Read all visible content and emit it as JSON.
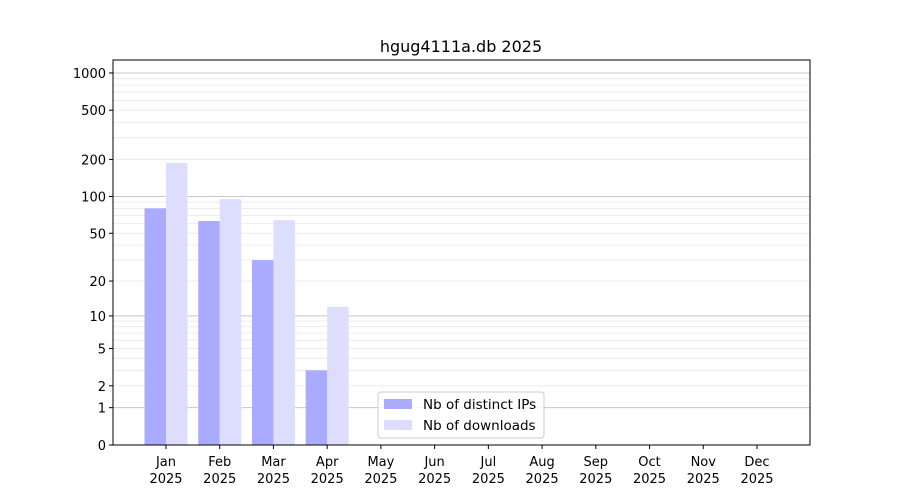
{
  "chart_data": {
    "type": "bar",
    "title": "hgug4111a.db 2025",
    "xlabel": "",
    "ylabel": "",
    "yscale": "symlog (log of 1+y)",
    "ylim": [
      0,
      1300
    ],
    "yticks": [
      0,
      1,
      2,
      5,
      10,
      20,
      50,
      100,
      200,
      500,
      1000
    ],
    "grid": true,
    "legend_position": "bottom-center",
    "categories": [
      [
        "Jan",
        "2025"
      ],
      [
        "Feb",
        "2025"
      ],
      [
        "Mar",
        "2025"
      ],
      [
        "Apr",
        "2025"
      ],
      [
        "May",
        "2025"
      ],
      [
        "Jun",
        "2025"
      ],
      [
        "Jul",
        "2025"
      ],
      [
        "Aug",
        "2025"
      ],
      [
        "Sep",
        "2025"
      ],
      [
        "Oct",
        "2025"
      ],
      [
        "Nov",
        "2025"
      ],
      [
        "Dec",
        "2025"
      ]
    ],
    "series": [
      {
        "name": "Nb of distinct IPs",
        "color": "#aaaaff",
        "values": [
          80,
          63,
          30,
          3,
          0,
          0,
          0,
          0,
          0,
          0,
          0,
          0
        ]
      },
      {
        "name": "Nb of downloads",
        "color": "#ddddff",
        "values": [
          187,
          95,
          64,
          12,
          0,
          0,
          0,
          0,
          0,
          0,
          0,
          0
        ]
      }
    ]
  }
}
